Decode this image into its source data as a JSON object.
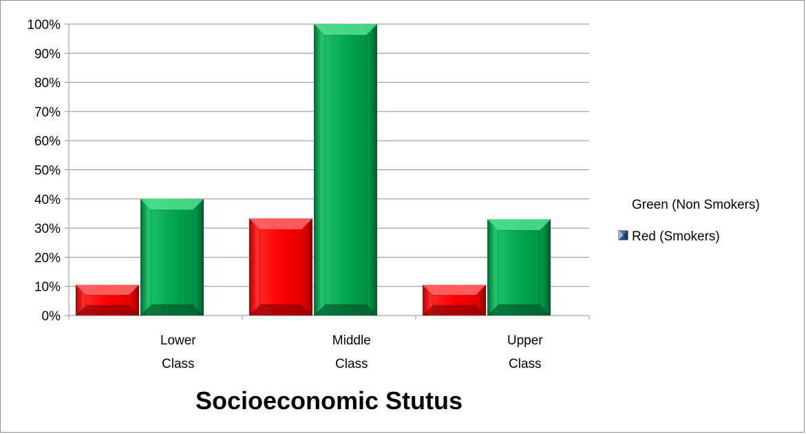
{
  "chart_data": {
    "type": "bar",
    "title": "",
    "xlabel": "Socioeconomic Stutus",
    "ylabel": "",
    "categories": [
      [
        "Lower",
        "Class"
      ],
      [
        "Middle",
        "Class"
      ],
      [
        "Upper",
        "Class"
      ]
    ],
    "series": [
      {
        "name": "Red (Smokers)",
        "color": "#ff0000",
        "values": [
          10.5,
          33.3,
          10.5
        ]
      },
      {
        "name": "Green (Non Smokers)",
        "color": "#00a651",
        "values": [
          40,
          100,
          33
        ]
      }
    ],
    "ylim": [
      0,
      100
    ],
    "yticks": [
      "0%",
      "10%",
      "20%",
      "30%",
      "40%",
      "50%",
      "60%",
      "70%",
      "80%",
      "90%",
      "100%"
    ],
    "grid": true,
    "legend_position": "right",
    "legend": [
      {
        "label": "Green (Non Smokers)",
        "icon": "none"
      },
      {
        "label": "Red (Smokers)",
        "icon": "blue-square-icon"
      }
    ]
  }
}
